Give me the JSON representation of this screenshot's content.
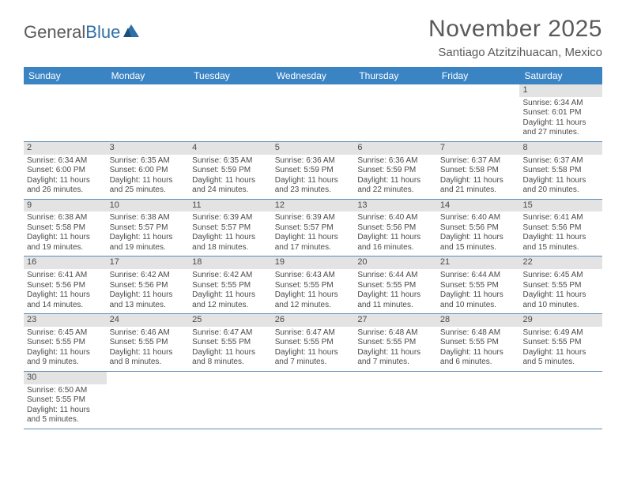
{
  "logo": {
    "text_general": "General",
    "text_blue": "Blue"
  },
  "header": {
    "month_title": "November 2025",
    "location": "Santiago Atzitzihuacan, Mexico"
  },
  "colors": {
    "header_bar": "#3b84c4",
    "day_num_bg": "#e3e3e3",
    "row_divider": "#5a8cb8",
    "text": "#4a4a4a",
    "logo_blue": "#2f6fa8",
    "background": "#ffffff"
  },
  "typography": {
    "title_fontsize": 30,
    "location_fontsize": 15,
    "dow_fontsize": 12,
    "daynum_fontsize": 11,
    "body_fontsize": 10
  },
  "days_of_week": [
    "Sunday",
    "Monday",
    "Tuesday",
    "Wednesday",
    "Thursday",
    "Friday",
    "Saturday"
  ],
  "weeks": [
    [
      null,
      null,
      null,
      null,
      null,
      null,
      {
        "n": "1",
        "sunrise": "Sunrise: 6:34 AM",
        "sunset": "Sunset: 6:01 PM",
        "dl1": "Daylight: 11 hours",
        "dl2": "and 27 minutes."
      }
    ],
    [
      {
        "n": "2",
        "sunrise": "Sunrise: 6:34 AM",
        "sunset": "Sunset: 6:00 PM",
        "dl1": "Daylight: 11 hours",
        "dl2": "and 26 minutes."
      },
      {
        "n": "3",
        "sunrise": "Sunrise: 6:35 AM",
        "sunset": "Sunset: 6:00 PM",
        "dl1": "Daylight: 11 hours",
        "dl2": "and 25 minutes."
      },
      {
        "n": "4",
        "sunrise": "Sunrise: 6:35 AM",
        "sunset": "Sunset: 5:59 PM",
        "dl1": "Daylight: 11 hours",
        "dl2": "and 24 minutes."
      },
      {
        "n": "5",
        "sunrise": "Sunrise: 6:36 AM",
        "sunset": "Sunset: 5:59 PM",
        "dl1": "Daylight: 11 hours",
        "dl2": "and 23 minutes."
      },
      {
        "n": "6",
        "sunrise": "Sunrise: 6:36 AM",
        "sunset": "Sunset: 5:59 PM",
        "dl1": "Daylight: 11 hours",
        "dl2": "and 22 minutes."
      },
      {
        "n": "7",
        "sunrise": "Sunrise: 6:37 AM",
        "sunset": "Sunset: 5:58 PM",
        "dl1": "Daylight: 11 hours",
        "dl2": "and 21 minutes."
      },
      {
        "n": "8",
        "sunrise": "Sunrise: 6:37 AM",
        "sunset": "Sunset: 5:58 PM",
        "dl1": "Daylight: 11 hours",
        "dl2": "and 20 minutes."
      }
    ],
    [
      {
        "n": "9",
        "sunrise": "Sunrise: 6:38 AM",
        "sunset": "Sunset: 5:58 PM",
        "dl1": "Daylight: 11 hours",
        "dl2": "and 19 minutes."
      },
      {
        "n": "10",
        "sunrise": "Sunrise: 6:38 AM",
        "sunset": "Sunset: 5:57 PM",
        "dl1": "Daylight: 11 hours",
        "dl2": "and 19 minutes."
      },
      {
        "n": "11",
        "sunrise": "Sunrise: 6:39 AM",
        "sunset": "Sunset: 5:57 PM",
        "dl1": "Daylight: 11 hours",
        "dl2": "and 18 minutes."
      },
      {
        "n": "12",
        "sunrise": "Sunrise: 6:39 AM",
        "sunset": "Sunset: 5:57 PM",
        "dl1": "Daylight: 11 hours",
        "dl2": "and 17 minutes."
      },
      {
        "n": "13",
        "sunrise": "Sunrise: 6:40 AM",
        "sunset": "Sunset: 5:56 PM",
        "dl1": "Daylight: 11 hours",
        "dl2": "and 16 minutes."
      },
      {
        "n": "14",
        "sunrise": "Sunrise: 6:40 AM",
        "sunset": "Sunset: 5:56 PM",
        "dl1": "Daylight: 11 hours",
        "dl2": "and 15 minutes."
      },
      {
        "n": "15",
        "sunrise": "Sunrise: 6:41 AM",
        "sunset": "Sunset: 5:56 PM",
        "dl1": "Daylight: 11 hours",
        "dl2": "and 15 minutes."
      }
    ],
    [
      {
        "n": "16",
        "sunrise": "Sunrise: 6:41 AM",
        "sunset": "Sunset: 5:56 PM",
        "dl1": "Daylight: 11 hours",
        "dl2": "and 14 minutes."
      },
      {
        "n": "17",
        "sunrise": "Sunrise: 6:42 AM",
        "sunset": "Sunset: 5:56 PM",
        "dl1": "Daylight: 11 hours",
        "dl2": "and 13 minutes."
      },
      {
        "n": "18",
        "sunrise": "Sunrise: 6:42 AM",
        "sunset": "Sunset: 5:55 PM",
        "dl1": "Daylight: 11 hours",
        "dl2": "and 12 minutes."
      },
      {
        "n": "19",
        "sunrise": "Sunrise: 6:43 AM",
        "sunset": "Sunset: 5:55 PM",
        "dl1": "Daylight: 11 hours",
        "dl2": "and 12 minutes."
      },
      {
        "n": "20",
        "sunrise": "Sunrise: 6:44 AM",
        "sunset": "Sunset: 5:55 PM",
        "dl1": "Daylight: 11 hours",
        "dl2": "and 11 minutes."
      },
      {
        "n": "21",
        "sunrise": "Sunrise: 6:44 AM",
        "sunset": "Sunset: 5:55 PM",
        "dl1": "Daylight: 11 hours",
        "dl2": "and 10 minutes."
      },
      {
        "n": "22",
        "sunrise": "Sunrise: 6:45 AM",
        "sunset": "Sunset: 5:55 PM",
        "dl1": "Daylight: 11 hours",
        "dl2": "and 10 minutes."
      }
    ],
    [
      {
        "n": "23",
        "sunrise": "Sunrise: 6:45 AM",
        "sunset": "Sunset: 5:55 PM",
        "dl1": "Daylight: 11 hours",
        "dl2": "and 9 minutes."
      },
      {
        "n": "24",
        "sunrise": "Sunrise: 6:46 AM",
        "sunset": "Sunset: 5:55 PM",
        "dl1": "Daylight: 11 hours",
        "dl2": "and 8 minutes."
      },
      {
        "n": "25",
        "sunrise": "Sunrise: 6:47 AM",
        "sunset": "Sunset: 5:55 PM",
        "dl1": "Daylight: 11 hours",
        "dl2": "and 8 minutes."
      },
      {
        "n": "26",
        "sunrise": "Sunrise: 6:47 AM",
        "sunset": "Sunset: 5:55 PM",
        "dl1": "Daylight: 11 hours",
        "dl2": "and 7 minutes."
      },
      {
        "n": "27",
        "sunrise": "Sunrise: 6:48 AM",
        "sunset": "Sunset: 5:55 PM",
        "dl1": "Daylight: 11 hours",
        "dl2": "and 7 minutes."
      },
      {
        "n": "28",
        "sunrise": "Sunrise: 6:48 AM",
        "sunset": "Sunset: 5:55 PM",
        "dl1": "Daylight: 11 hours",
        "dl2": "and 6 minutes."
      },
      {
        "n": "29",
        "sunrise": "Sunrise: 6:49 AM",
        "sunset": "Sunset: 5:55 PM",
        "dl1": "Daylight: 11 hours",
        "dl2": "and 5 minutes."
      }
    ],
    [
      {
        "n": "30",
        "sunrise": "Sunrise: 6:50 AM",
        "sunset": "Sunset: 5:55 PM",
        "dl1": "Daylight: 11 hours",
        "dl2": "and 5 minutes."
      },
      null,
      null,
      null,
      null,
      null,
      null
    ]
  ]
}
